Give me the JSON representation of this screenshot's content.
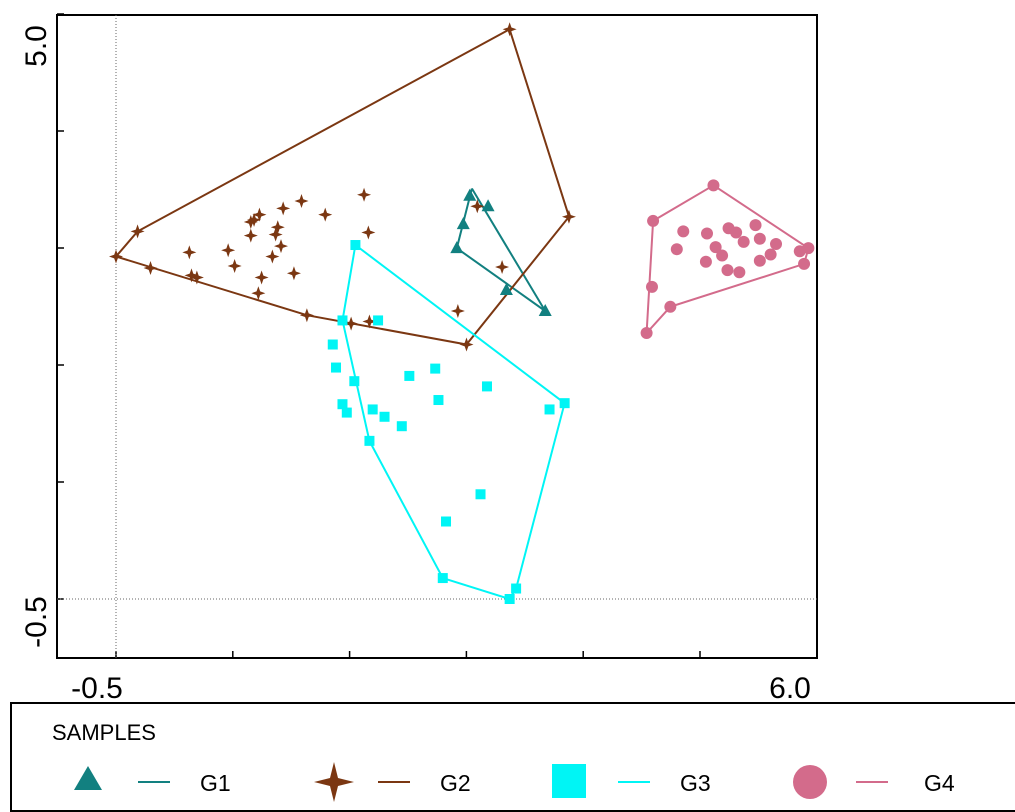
{
  "chart_data": {
    "type": "scatter",
    "xlim": [
      -0.5,
      6.0
    ],
    "ylim": [
      -0.5,
      5.0
    ],
    "x_tick_labels": [
      "-0.5",
      "6.0"
    ],
    "y_tick_labels": [
      "-0.5",
      "5.0"
    ],
    "reference_lines": {
      "x": -0.5,
      "y": -0.5
    },
    "legend": {
      "title": "SAMPLES",
      "placement": "bottom"
    },
    "series": [
      {
        "name": "G1",
        "marker": "triangle",
        "color": "#128080",
        "points": [
          [
            2.78,
            3.35
          ],
          [
            2.72,
            3.08
          ],
          [
            2.66,
            2.85
          ],
          [
            3.12,
            2.45
          ],
          [
            3.48,
            2.25
          ],
          [
            2.95,
            3.25
          ]
        ],
        "hull": [
          [
            2.8,
            3.42
          ],
          [
            2.66,
            2.85
          ],
          [
            3.48,
            2.25
          ],
          [
            2.8,
            3.42
          ]
        ]
      },
      {
        "name": "G2",
        "marker": "star4",
        "color": "#7b3712",
        "points": [
          [
            3.15,
            4.94
          ],
          [
            3.7,
            3.15
          ],
          [
            2.75,
            1.93
          ],
          [
            1.27,
            2.21
          ],
          [
            -0.3,
            3.01
          ],
          [
            -0.5,
            2.77
          ],
          [
            -0.18,
            2.66
          ],
          [
            0.18,
            2.81
          ],
          [
            0.25,
            2.57
          ],
          [
            0.2,
            2.59
          ],
          [
            0.54,
            2.83
          ],
          [
            0.6,
            2.68
          ],
          [
            0.75,
            2.97
          ],
          [
            0.98,
            2.98
          ],
          [
            0.83,
            3.17
          ],
          [
            1.05,
            3.23
          ],
          [
            1.22,
            3.3
          ],
          [
            1.44,
            3.17
          ],
          [
            1.8,
            3.36
          ],
          [
            1.84,
            3.0
          ],
          [
            1.15,
            2.61
          ],
          [
            1.03,
            2.87
          ],
          [
            0.78,
            3.12
          ],
          [
            1.0,
            3.05
          ],
          [
            0.75,
            3.1
          ],
          [
            0.82,
            2.42
          ],
          [
            0.85,
            2.57
          ],
          [
            1.68,
            2.13
          ],
          [
            2.67,
            2.25
          ],
          [
            2.85,
            3.25
          ],
          [
            3.08,
            2.67
          ],
          [
            1.85,
            2.15
          ],
          [
            0.95,
            2.77
          ]
        ],
        "hull": [
          [
            3.15,
            4.94
          ],
          [
            3.7,
            3.15
          ],
          [
            2.75,
            1.93
          ],
          [
            1.27,
            2.21
          ],
          [
            -0.5,
            2.77
          ],
          [
            -0.3,
            3.01
          ],
          [
            3.15,
            4.94
          ]
        ]
      },
      {
        "name": "G3",
        "marker": "square",
        "color": "#00f5f5",
        "points": [
          [
            1.72,
            2.88
          ],
          [
            1.6,
            2.16
          ],
          [
            1.93,
            2.16
          ],
          [
            1.51,
            1.93
          ],
          [
            1.54,
            1.71
          ],
          [
            1.71,
            1.58
          ],
          [
            1.64,
            1.28
          ],
          [
            1.85,
            1.01
          ],
          [
            1.6,
            1.36
          ],
          [
            1.88,
            1.31
          ],
          [
            1.99,
            1.24
          ],
          [
            2.15,
            1.15
          ],
          [
            2.22,
            1.63
          ],
          [
            2.49,
            1.4
          ],
          [
            2.94,
            1.53
          ],
          [
            3.66,
            1.37
          ],
          [
            3.52,
            1.31
          ],
          [
            2.88,
            0.5
          ],
          [
            3.15,
            -0.5
          ],
          [
            3.21,
            -0.4
          ],
          [
            2.53,
            -0.3
          ],
          [
            2.56,
            0.24
          ],
          [
            2.46,
            1.7
          ]
        ],
        "hull": [
          [
            1.72,
            2.88
          ],
          [
            1.6,
            2.16
          ],
          [
            1.85,
            1.01
          ],
          [
            2.53,
            -0.3
          ],
          [
            3.15,
            -0.5
          ],
          [
            3.21,
            -0.4
          ],
          [
            3.66,
            1.37
          ],
          [
            1.72,
            2.88
          ]
        ]
      },
      {
        "name": "G4",
        "marker": "circle",
        "color": "#d36b8b",
        "points": [
          [
            5.04,
            3.45
          ],
          [
            4.48,
            3.11
          ],
          [
            4.76,
            3.01
          ],
          [
            4.98,
            2.99
          ],
          [
            5.18,
            3.04
          ],
          [
            5.06,
            2.86
          ],
          [
            5.32,
            2.91
          ],
          [
            5.92,
            2.85
          ],
          [
            5.84,
            2.82
          ],
          [
            5.62,
            2.89
          ],
          [
            5.57,
            2.79
          ],
          [
            5.47,
            2.73
          ],
          [
            5.28,
            2.62
          ],
          [
            4.97,
            2.72
          ],
          [
            4.7,
            2.84
          ],
          [
            5.12,
            2.78
          ],
          [
            5.17,
            2.64
          ],
          [
            5.88,
            2.7
          ],
          [
            4.64,
            2.29
          ],
          [
            4.47,
            2.48
          ],
          [
            4.42,
            2.04
          ],
          [
            5.47,
            2.94
          ],
          [
            5.43,
            3.07
          ],
          [
            5.25,
            3.0
          ]
        ],
        "hull": [
          [
            5.04,
            3.45
          ],
          [
            5.92,
            2.85
          ],
          [
            5.88,
            2.7
          ],
          [
            4.64,
            2.29
          ],
          [
            4.42,
            2.04
          ],
          [
            4.48,
            3.11
          ],
          [
            5.04,
            3.45
          ]
        ]
      }
    ]
  },
  "legend_labels": {
    "title": "SAMPLES",
    "g1": "G1",
    "g2": "G2",
    "g3": "G3",
    "g4": "G4"
  }
}
